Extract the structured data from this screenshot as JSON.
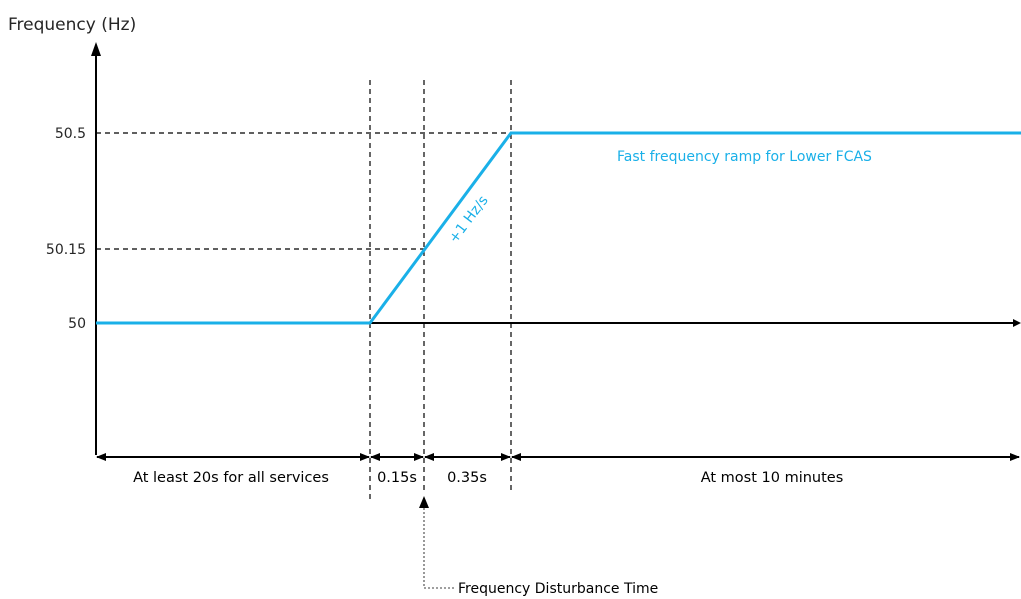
{
  "y_axis_title": "Frequency (Hz)",
  "y_ticks": [
    "50.5",
    "50.15",
    "50"
  ],
  "curve_label": "Fast frequency ramp for Lower FCAS",
  "slope_label": "+1 Hz/s",
  "segments": [
    "At least 20s for all services",
    "0.15s",
    "0.35s",
    "At most 10 minutes"
  ],
  "disturbance_note": "Frequency Disturbance Time",
  "colors": {
    "curve": "#1ab0e8",
    "axis": "#000000",
    "text": "#262626"
  }
}
